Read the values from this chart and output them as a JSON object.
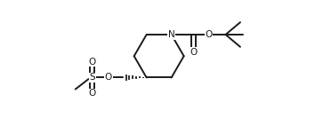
{
  "bg_color": "#ffffff",
  "line_color": "#1a1a1a",
  "line_width": 1.4,
  "fig_width": 3.54,
  "fig_height": 1.33,
  "dpi": 100,
  "xlim": [
    0,
    10.5
  ],
  "ylim": [
    0,
    4.0
  ]
}
